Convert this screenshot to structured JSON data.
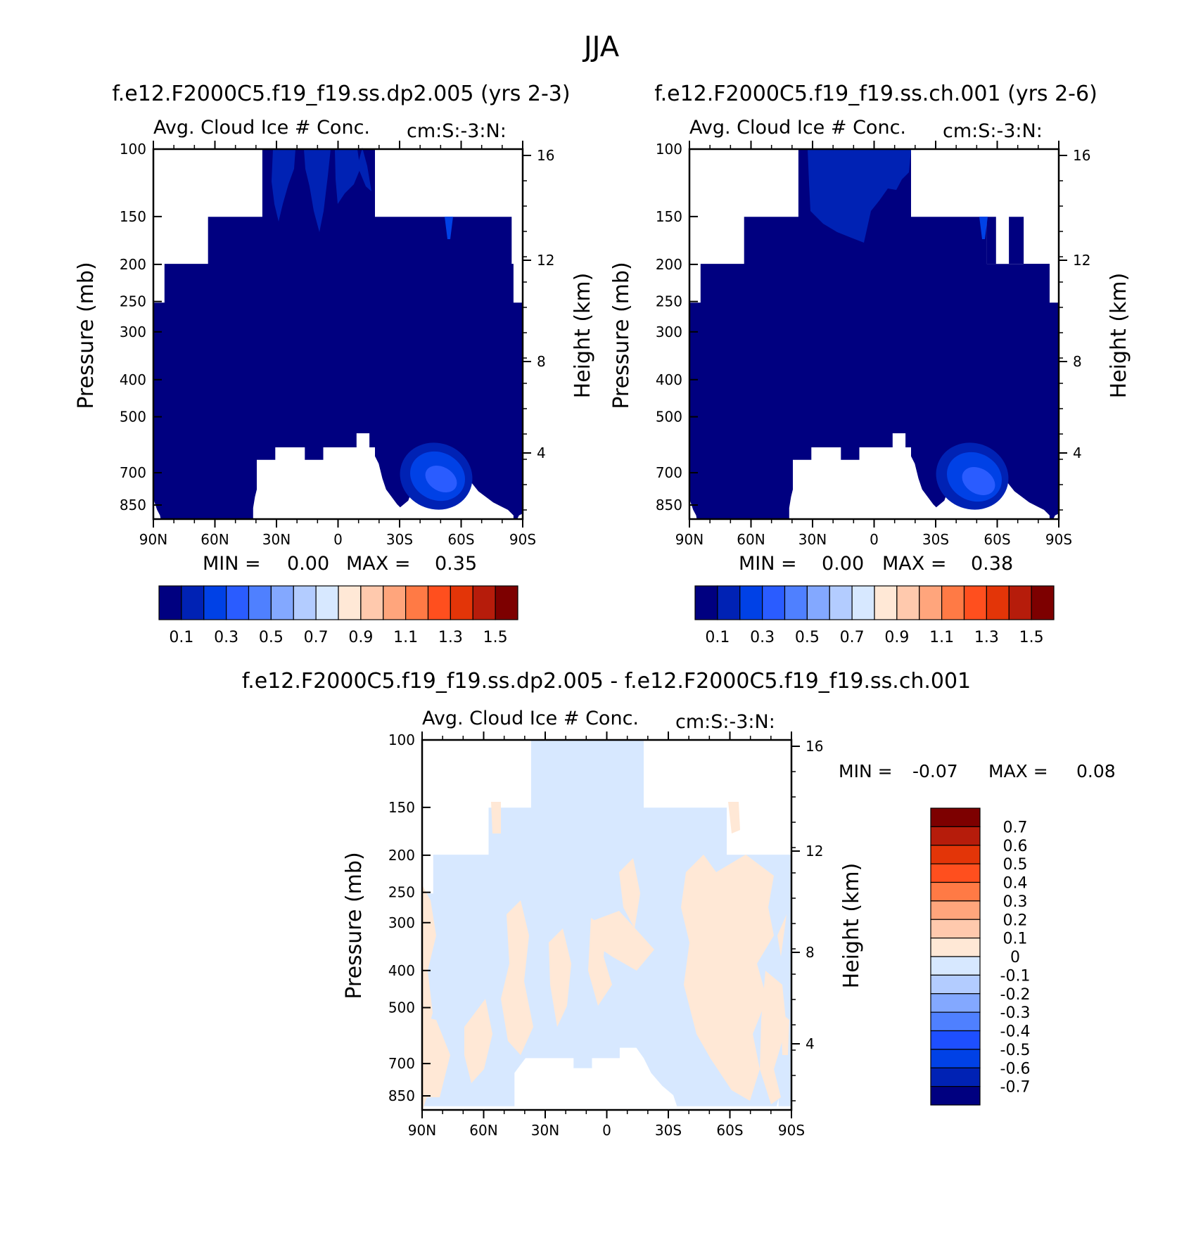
{
  "figure": {
    "title": "JJA",
    "colors": {
      "abs_scale": [
        "#000080",
        "#0022b4",
        "#0041e6",
        "#2a5cff",
        "#4f80ff",
        "#83a8ff",
        "#b3ccff",
        "#d7e8ff",
        "#ffe8d6",
        "#ffc9ad",
        "#ffa57c",
        "#ff7a45",
        "#ff4f1e",
        "#e33508",
        "#b61c0b",
        "#7d0000"
      ],
      "diff_scale": [
        "#000080",
        "#0022b4",
        "#0041e6",
        "#1e4fff",
        "#4f80ff",
        "#83a8ff",
        "#b3ccff",
        "#d7e8ff",
        "#ffe8d6",
        "#ffc9ad",
        "#ffa57c",
        "#ff7a45",
        "#ff4f1e",
        "#e33508",
        "#b61c0b",
        "#7d0000"
      ]
    }
  },
  "chart_data": [
    {
      "type": "heatmap",
      "title": "f.e12.F2000C5.f19_f19.ss.dp2.005 (yrs 2-3)",
      "subtitle_left": "Avg. Cloud Ice # Conc.",
      "subtitle_right": "cm:S:-3:N:",
      "ylabel": "Pressure (mb)",
      "ylabel_right": "Height (km)",
      "x_ticks": [
        "90N",
        "60N",
        "30N",
        "0",
        "30S",
        "60S",
        "90S"
      ],
      "y_ticks": [
        "100",
        "150",
        "200",
        "250",
        "300",
        "400",
        "500",
        "700",
        "850"
      ],
      "y_right_ticks": [
        "16",
        "12",
        "8",
        "4"
      ],
      "min_label": "MIN =",
      "min_value": "0.00",
      "max_label": "MAX =",
      "max_value": "0.35",
      "colorbar_labels": [
        "0.1",
        "0.3",
        "0.5",
        "0.7",
        "0.9",
        "1.1",
        "1.3",
        "1.5"
      ],
      "field_max": 0.35
    },
    {
      "type": "heatmap",
      "title": "f.e12.F2000C5.f19_f19.ss.ch.001 (yrs 2-6)",
      "subtitle_left": "Avg. Cloud Ice # Conc.",
      "subtitle_right": "cm:S:-3:N:",
      "ylabel": "Pressure (mb)",
      "ylabel_right": "Height (km)",
      "x_ticks": [
        "90N",
        "60N",
        "30N",
        "0",
        "30S",
        "60S",
        "90S"
      ],
      "y_ticks": [
        "100",
        "150",
        "200",
        "250",
        "300",
        "400",
        "500",
        "700",
        "850"
      ],
      "y_right_ticks": [
        "16",
        "12",
        "8",
        "4"
      ],
      "min_label": "MIN =",
      "min_value": "0.00",
      "max_label": "MAX =",
      "max_value": "0.38",
      "colorbar_labels": [
        "0.1",
        "0.3",
        "0.5",
        "0.7",
        "0.9",
        "1.1",
        "1.3",
        "1.5"
      ],
      "field_max": 0.38
    },
    {
      "type": "heatmap",
      "title": "f.e12.F2000C5.f19_f19.ss.dp2.005 - f.e12.F2000C5.f19_f19.ss.ch.001",
      "subtitle_left": "Avg. Cloud Ice # Conc.",
      "subtitle_right": "cm:S:-3:N:",
      "ylabel": "Pressure (mb)",
      "ylabel_right": "Height (km)",
      "x_ticks": [
        "90N",
        "60N",
        "30N",
        "0",
        "30S",
        "60S",
        "90S"
      ],
      "y_ticks": [
        "100",
        "150",
        "200",
        "250",
        "300",
        "400",
        "500",
        "700",
        "850"
      ],
      "y_right_ticks": [
        "16",
        "12",
        "8",
        "4"
      ],
      "min_label": "MIN =",
      "min_value": "-0.07",
      "max_label": "MAX =",
      "max_value": "0.08",
      "colorbar_labels": [
        "0.7",
        "0.6",
        "0.5",
        "0.4",
        "0.3",
        "0.2",
        "0.1",
        "0",
        "-0.1",
        "-0.2",
        "-0.3",
        "-0.4",
        "-0.5",
        "-0.6",
        "-0.7"
      ],
      "field_min": -0.07,
      "field_max": 0.08
    }
  ]
}
